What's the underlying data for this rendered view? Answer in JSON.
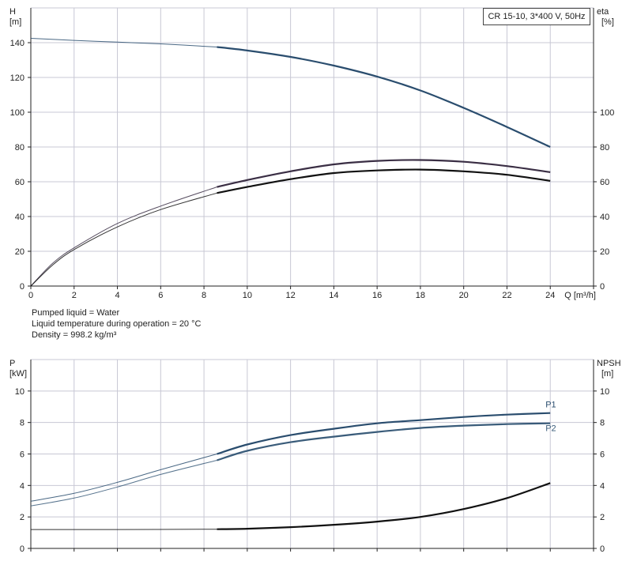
{
  "chart_data": [
    {
      "type": "line",
      "panel": "top",
      "title": "CR 15-10, 3*400 V, 50Hz",
      "xlabel": "Q [m³/h]",
      "ylabel_left": "H",
      "ylabel_left_unit": "[m]",
      "ylabel_right": "eta",
      "ylabel_right_unit": "[%]",
      "xlim": [
        0,
        26
      ],
      "ylim_left": [
        0,
        160
      ],
      "ylim_right": [
        0,
        160
      ],
      "x_ticks": [
        "0",
        "2",
        "4",
        "6",
        "8",
        "10",
        "12",
        "14",
        "16",
        "18",
        "20",
        "22",
        "24"
      ],
      "y_ticks_left": [
        "0",
        "20",
        "40",
        "60",
        "80",
        "100",
        "120",
        "140"
      ],
      "y_ticks_right": [
        "0",
        "20",
        "40",
        "60",
        "80",
        "100"
      ],
      "grid": true,
      "series": [
        {
          "id": "H",
          "axis": "left",
          "x": [
            0,
            2,
            4,
            6,
            8.6,
            10,
            12,
            14,
            16,
            18,
            20,
            22,
            24
          ],
          "y": [
            142.5,
            141.3,
            140.3,
            139.3,
            137.5,
            135.5,
            131.8,
            126.8,
            120.5,
            112.5,
            102.5,
            91.5,
            80
          ],
          "bold_from_x": 8.6,
          "color": "#2a4d6e"
        },
        {
          "id": "eta-upper",
          "axis": "right",
          "x": [
            0,
            1,
            2,
            4,
            6,
            8.6,
            10,
            12,
            14,
            16,
            18,
            20,
            22,
            24
          ],
          "y": [
            0,
            13,
            22,
            36,
            46,
            57,
            61,
            66,
            70,
            72,
            72.5,
            71.5,
            69,
            65.5
          ],
          "bold_from_x": 8.6,
          "color": "#3a2e44"
        },
        {
          "id": "eta-lower",
          "axis": "right",
          "x": [
            0,
            1,
            2,
            4,
            6,
            8.6,
            10,
            12,
            14,
            16,
            18,
            20,
            22,
            24
          ],
          "y": [
            0,
            12,
            21,
            34,
            44,
            53.5,
            57,
            61.5,
            65,
            66.5,
            67,
            66,
            64,
            60.5
          ],
          "bold_from_x": 8.6,
          "color": "#111111"
        }
      ]
    },
    {
      "type": "line",
      "panel": "bottom",
      "xlim": [
        0,
        26
      ],
      "ylabel_left": "P",
      "ylabel_left_unit": "[kW]",
      "ylabel_right": "NPSH",
      "ylabel_right_unit": "[m]",
      "ylim_left": [
        0,
        12
      ],
      "ylim_right": [
        0,
        12
      ],
      "y_ticks_left": [
        "0",
        "2",
        "4",
        "6",
        "8",
        "10"
      ],
      "y_ticks_right": [
        "0",
        "2",
        "4",
        "6",
        "8",
        "10"
      ],
      "grid": true,
      "series": [
        {
          "name": "P1",
          "axis": "left",
          "x": [
            0,
            2,
            4,
            6,
            8.6,
            10,
            12,
            14,
            16,
            18,
            20,
            22,
            24
          ],
          "y": [
            3.0,
            3.5,
            4.2,
            5.0,
            6.0,
            6.6,
            7.2,
            7.6,
            7.95,
            8.15,
            8.35,
            8.5,
            8.6
          ],
          "bold_from_x": 8.6,
          "color": "#2a4d6e"
        },
        {
          "name": "P2",
          "axis": "left",
          "x": [
            0,
            2,
            4,
            6,
            8.6,
            10,
            12,
            14,
            16,
            18,
            20,
            22,
            24
          ],
          "y": [
            2.7,
            3.2,
            3.9,
            4.7,
            5.6,
            6.2,
            6.75,
            7.1,
            7.4,
            7.65,
            7.8,
            7.9,
            7.95
          ],
          "bold_from_x": 8.6,
          "color": "#3a5c7a"
        },
        {
          "id": "NPSH",
          "axis": "right",
          "x": [
            0,
            4,
            8.6,
            10,
            12,
            14,
            16,
            18,
            20,
            22,
            24
          ],
          "y": [
            1.2,
            1.2,
            1.22,
            1.25,
            1.35,
            1.5,
            1.7,
            2.0,
            2.5,
            3.2,
            4.15
          ],
          "bold_from_x": 8.6,
          "color": "#111111"
        }
      ]
    }
  ],
  "info": {
    "line1": "Pumped liquid = Water",
    "line2": "Liquid temperature during operation = 20 °C",
    "line3": "Density = 998.2 kg/m³"
  },
  "colors": {
    "grid": "#c8c8d4",
    "axis": "#222222",
    "head": "#2a4d6e",
    "eta_upper": "#3a2e44",
    "eta_lower": "#111111",
    "p1": "#2a4d6e",
    "p2": "#3a5c7a",
    "npsh": "#111111"
  }
}
